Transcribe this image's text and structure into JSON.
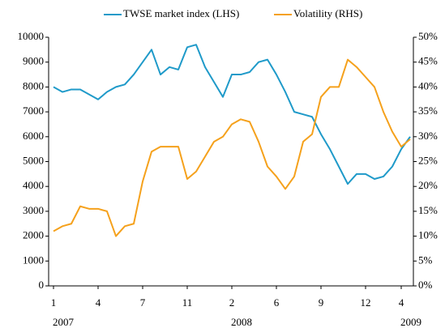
{
  "chart_data": {
    "type": "line",
    "categories": [
      "1",
      null,
      null,
      null,
      null,
      "4",
      null,
      null,
      null,
      null,
      "7",
      null,
      null,
      null,
      null,
      "11",
      null,
      null,
      null,
      null,
      "2",
      null,
      null,
      null,
      null,
      "6",
      null,
      null,
      null,
      null,
      "9",
      null,
      null,
      null,
      null,
      "12",
      null,
      null,
      null,
      "4",
      null
    ],
    "year_labels": [
      "2007",
      null,
      null,
      null,
      null,
      null,
      null,
      null,
      null,
      null,
      null,
      null,
      null,
      null,
      null,
      null,
      null,
      null,
      null,
      null,
      "2008",
      null,
      null,
      null,
      null,
      null,
      null,
      null,
      null,
      null,
      null,
      null,
      null,
      null,
      null,
      null,
      null,
      null,
      null,
      "2009",
      null
    ],
    "series": [
      {
        "name": "TWSE market index (LHS)",
        "color": "#1f9ac9",
        "axis": "y",
        "values": [
          8000,
          7800,
          7900,
          7900,
          7700,
          7500,
          7800,
          8000,
          8100,
          8500,
          9000,
          9500,
          8500,
          8800,
          8700,
          9600,
          9700,
          8800,
          8200,
          7600,
          8500,
          8500,
          8600,
          9000,
          9100,
          8500,
          7800,
          7000,
          6900,
          6800,
          6100,
          5500,
          4800,
          4100,
          4500,
          4500,
          4300,
          4400,
          4800,
          5500,
          6000
        ]
      },
      {
        "name": "Volatility (RHS)",
        "color": "#f5a11c",
        "axis": "y2",
        "values": [
          11,
          12,
          12.5,
          16,
          15.5,
          15.5,
          15,
          10,
          12,
          12.5,
          21,
          27,
          28,
          28,
          28,
          21.5,
          23,
          26,
          29,
          30,
          32.5,
          33.5,
          33,
          29,
          24,
          22,
          19.5,
          22,
          29,
          30.5,
          38,
          40,
          40,
          45.5,
          44,
          42,
          40,
          35,
          31,
          28,
          29.5
        ]
      }
    ],
    "ylim": [
      0,
      10000
    ],
    "yticks": [
      0,
      1000,
      2000,
      3000,
      4000,
      5000,
      6000,
      7000,
      8000,
      9000,
      10000
    ],
    "y2lim": [
      0,
      50
    ],
    "y2ticks": [
      {
        "value": 0,
        "label": "0%"
      },
      {
        "value": 5,
        "label": "5%"
      },
      {
        "value": 10,
        "label": "10%"
      },
      {
        "value": 15,
        "label": "15%"
      },
      {
        "value": 20,
        "label": "20%"
      },
      {
        "value": 25,
        "label": "25%"
      },
      {
        "value": 30,
        "label": "30%"
      },
      {
        "value": 35,
        "label": "35%"
      },
      {
        "value": 40,
        "label": "40%"
      },
      {
        "value": 45,
        "label": "45%"
      },
      {
        "value": 50,
        "label": "50%"
      }
    ],
    "legend": "top"
  }
}
